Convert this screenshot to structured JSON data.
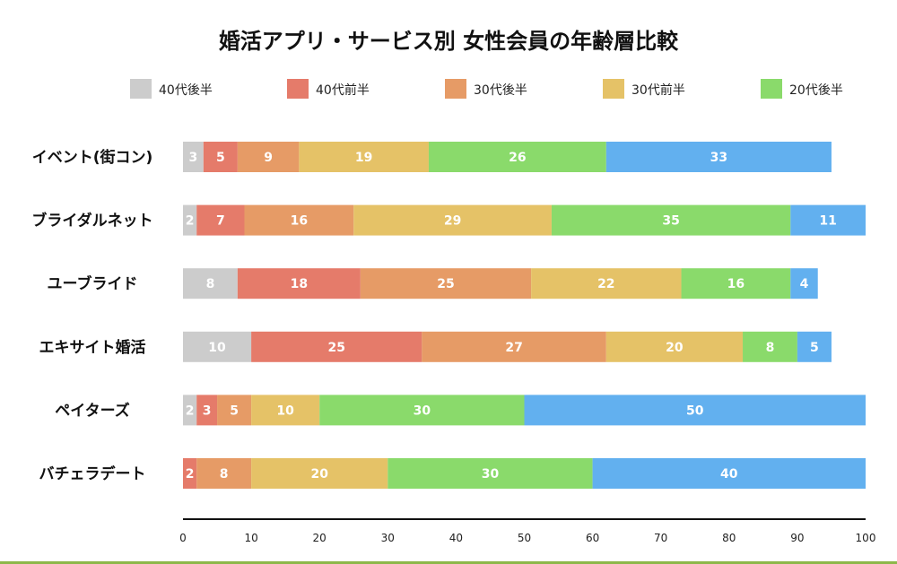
{
  "chart_data": {
    "type": "bar",
    "orientation": "horizontal",
    "stacked": true,
    "title": "婚活アプリ・サービス別 女性会員の年齢層比較",
    "categories": [
      "イベント(街コン)",
      "ブライダルネット",
      "ユーブライド",
      "エキサイト婚活",
      "ペイターズ",
      "バチェラデート"
    ],
    "series": [
      {
        "name": "40代後半",
        "color": "#cccccc",
        "values": [
          3,
          2,
          8,
          10,
          2,
          0
        ]
      },
      {
        "name": "40代前半",
        "color": "#e57b6a",
        "values": [
          5,
          7,
          18,
          25,
          3,
          2
        ]
      },
      {
        "name": "30代後半",
        "color": "#e69b66",
        "values": [
          9,
          16,
          25,
          27,
          5,
          8
        ]
      },
      {
        "name": "30代前半",
        "color": "#e5c267",
        "values": [
          19,
          29,
          22,
          20,
          10,
          20
        ]
      },
      {
        "name": "20代後半",
        "color": "#8ada6b",
        "values": [
          26,
          35,
          16,
          8,
          30,
          30
        ]
      },
      {
        "name": "",
        "color": "#62b0ef",
        "values": [
          33,
          11,
          4,
          5,
          50,
          40
        ]
      }
    ],
    "xlim": [
      0,
      100
    ],
    "xticks": [
      0,
      10,
      20,
      30,
      40,
      50,
      60,
      70,
      80,
      90,
      100
    ],
    "legend_position": "top",
    "grid": false
  }
}
